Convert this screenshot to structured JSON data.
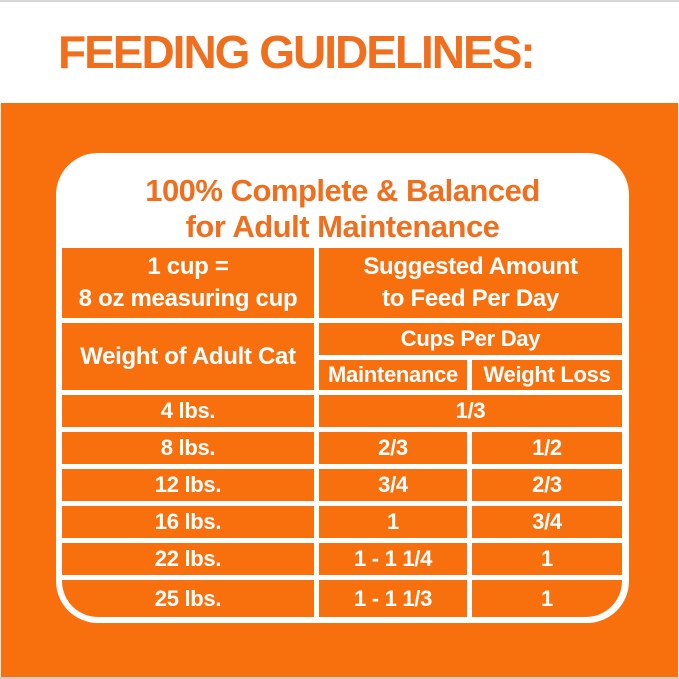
{
  "colors": {
    "orange": "#F8700E",
    "orange_text": "#EF6F1F",
    "white": "#FFFFFF",
    "edge_gray": "#D6D6D6"
  },
  "header": {
    "title": "FEEDING GUIDELINES:"
  },
  "panel": {
    "heading_line1": "100% Complete & Balanced",
    "heading_line2": "for Adult Maintenance"
  },
  "table": {
    "cup_note_line1": "1 cup =",
    "cup_note_line2": "8 oz measuring cup",
    "suggested_line1": "Suggested Amount",
    "suggested_line2": "to Feed Per Day",
    "weight_header": "Weight of Adult Cat",
    "cups_header": "Cups Per Day",
    "col_maintenance": "Maintenance",
    "col_weight_loss": "Weight Loss",
    "rows": [
      {
        "weight": "4 lbs.",
        "maintenance": "1/3",
        "weight_loss": "",
        "merged": true
      },
      {
        "weight": "8 lbs.",
        "maintenance": "2/3",
        "weight_loss": "1/2",
        "merged": false
      },
      {
        "weight": "12 lbs.",
        "maintenance": "3/4",
        "weight_loss": "2/3",
        "merged": false
      },
      {
        "weight": "16 lbs.",
        "maintenance": "1",
        "weight_loss": "3/4",
        "merged": false
      },
      {
        "weight": "22 lbs.",
        "maintenance": "1 - 1 1/4",
        "weight_loss": "1",
        "merged": false
      },
      {
        "weight": "25 lbs.",
        "maintenance": "1 - 1 1/3",
        "weight_loss": "1",
        "merged": false
      }
    ]
  }
}
